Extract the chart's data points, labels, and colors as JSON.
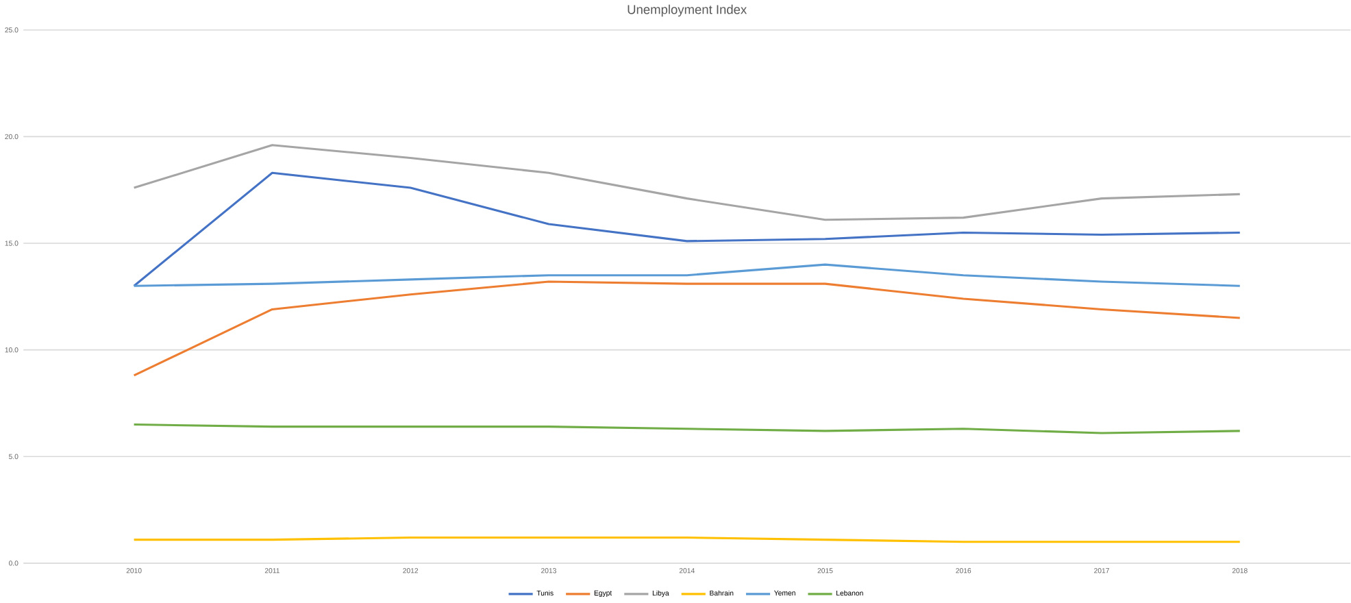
{
  "chart_data": {
    "type": "line",
    "title": "Unemployment Index",
    "categories": [
      "2010",
      "2011",
      "2012",
      "2013",
      "2014",
      "2015",
      "2016",
      "2017",
      "2018"
    ],
    "series": [
      {
        "name": "Tunis",
        "color": "#4472c4",
        "values": [
          13.0,
          18.3,
          17.6,
          15.9,
          15.1,
          15.2,
          15.5,
          15.4,
          15.5
        ]
      },
      {
        "name": "Egypt",
        "color": "#ed7d31",
        "values": [
          8.8,
          11.9,
          12.6,
          13.2,
          13.1,
          13.1,
          12.4,
          11.9,
          11.5
        ]
      },
      {
        "name": "Libya",
        "color": "#a5a5a5",
        "values": [
          17.6,
          19.6,
          19.0,
          18.3,
          17.1,
          16.1,
          16.2,
          17.1,
          17.3
        ]
      },
      {
        "name": "Bahrain",
        "color": "#ffc000",
        "values": [
          1.1,
          1.1,
          1.2,
          1.2,
          1.2,
          1.1,
          1.0,
          1.0,
          1.0
        ]
      },
      {
        "name": "Yemen",
        "color": "#5b9bd5",
        "values": [
          13.0,
          13.1,
          13.3,
          13.5,
          13.5,
          14.0,
          13.5,
          13.2,
          13.0
        ]
      },
      {
        "name": "Lebanon",
        "color": "#70ad47",
        "values": [
          6.5,
          6.4,
          6.4,
          6.4,
          6.3,
          6.2,
          6.3,
          6.1,
          6.2
        ]
      }
    ],
    "ylim": [
      0,
      25
    ],
    "yticks": [
      {
        "value": 0,
        "label": "0.0"
      },
      {
        "value": 5,
        "label": "5.0"
      },
      {
        "value": 10,
        "label": "10.0"
      },
      {
        "value": 15,
        "label": "15.0"
      },
      {
        "value": 20,
        "label": "20.0"
      },
      {
        "value": 25,
        "label": "25.0"
      }
    ],
    "grid": "y",
    "legend": "bottom",
    "marker": "none",
    "line_style": "solid"
  }
}
